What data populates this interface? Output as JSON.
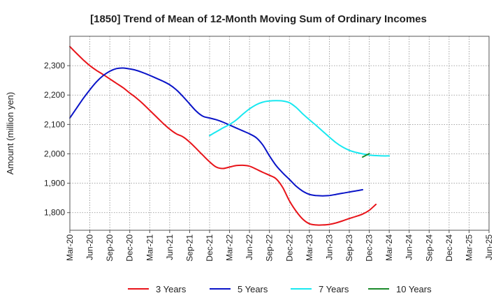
{
  "chart_data": {
    "type": "line",
    "title": "[1850]  Trend of Mean of 12-Month Moving Sum of Ordinary Incomes",
    "xlabel": "",
    "ylabel": "Amount (million yen)",
    "ylim": [
      1740,
      2400
    ],
    "y_ticks": [
      1800,
      1900,
      2000,
      2100,
      2200,
      2300
    ],
    "y_tick_labels": [
      "1,800",
      "1,900",
      "2,000",
      "2,100",
      "2,200",
      "2,300"
    ],
    "categories": [
      "Mar-20",
      "Jun-20",
      "Sep-20",
      "Dec-20",
      "Mar-21",
      "Jun-21",
      "Sep-21",
      "Dec-21",
      "Mar-22",
      "Jun-22",
      "Sep-22",
      "Dec-22",
      "Mar-23",
      "Jun-23",
      "Sep-23",
      "Dec-23",
      "Mar-24",
      "Jun-24",
      "Sep-24",
      "Dec-24",
      "Mar-25",
      "Jun-25"
    ],
    "grid": true,
    "legend_position": "bottom",
    "series": [
      {
        "name": "3 Years",
        "color": "#e8141a",
        "points": [
          [
            0,
            2365
          ],
          [
            1,
            2342
          ],
          [
            2,
            2320
          ],
          [
            3,
            2300
          ],
          [
            4,
            2284
          ],
          [
            5,
            2270
          ],
          [
            6,
            2255
          ],
          [
            7,
            2240
          ],
          [
            8,
            2225
          ],
          [
            9,
            2207
          ],
          [
            10,
            2190
          ],
          [
            11,
            2170
          ],
          [
            12,
            2148
          ],
          [
            13,
            2126
          ],
          [
            14,
            2104
          ],
          [
            15,
            2084
          ],
          [
            16,
            2068
          ],
          [
            17,
            2058
          ],
          [
            18,
            2040
          ],
          [
            19,
            2018
          ],
          [
            20,
            1995
          ],
          [
            21,
            1973
          ],
          [
            22,
            1955
          ],
          [
            23,
            1950
          ],
          [
            24,
            1955
          ],
          [
            25,
            1960
          ],
          [
            26,
            1961
          ],
          [
            27,
            1958
          ],
          [
            28,
            1948
          ],
          [
            29,
            1937
          ],
          [
            30,
            1927
          ],
          [
            31,
            1915
          ],
          [
            32,
            1885
          ],
          [
            33,
            1840
          ],
          [
            34,
            1805
          ],
          [
            35,
            1778
          ],
          [
            36,
            1762
          ],
          [
            37,
            1758
          ],
          [
            38,
            1758
          ],
          [
            39,
            1760
          ],
          [
            40,
            1765
          ],
          [
            41,
            1772
          ],
          [
            42,
            1780
          ],
          [
            43,
            1787
          ],
          [
            44,
            1795
          ],
          [
            45,
            1808
          ],
          [
            46,
            1828
          ]
        ]
      },
      {
        "name": "5 Years",
        "color": "#0a14c8",
        "points": [
          [
            0,
            2122
          ],
          [
            1,
            2155
          ],
          [
            2,
            2188
          ],
          [
            3,
            2218
          ],
          [
            4,
            2245
          ],
          [
            5,
            2266
          ],
          [
            6,
            2281
          ],
          [
            7,
            2290
          ],
          [
            8,
            2292
          ],
          [
            9,
            2289
          ],
          [
            10,
            2284
          ],
          [
            11,
            2276
          ],
          [
            12,
            2267
          ],
          [
            13,
            2257
          ],
          [
            14,
            2247
          ],
          [
            15,
            2235
          ],
          [
            16,
            2218
          ],
          [
            17,
            2195
          ],
          [
            18,
            2170
          ],
          [
            19,
            2145
          ],
          [
            20,
            2128
          ],
          [
            21,
            2122
          ],
          [
            22,
            2116
          ],
          [
            23,
            2108
          ],
          [
            24,
            2098
          ],
          [
            25,
            2088
          ],
          [
            26,
            2078
          ],
          [
            27,
            2068
          ],
          [
            28,
            2055
          ],
          [
            29,
            2030
          ],
          [
            30,
            1993
          ],
          [
            31,
            1960
          ],
          [
            32,
            1935
          ],
          [
            33,
            1913
          ],
          [
            34,
            1890
          ],
          [
            35,
            1873
          ],
          [
            36,
            1862
          ],
          [
            37,
            1858
          ],
          [
            38,
            1857
          ],
          [
            39,
            1858
          ],
          [
            40,
            1862
          ],
          [
            41,
            1866
          ],
          [
            42,
            1870
          ],
          [
            43,
            1874
          ],
          [
            44,
            1878
          ]
        ]
      },
      {
        "name": "7 Years",
        "color": "#18e8f0",
        "points": [
          [
            0,
            2062
          ],
          [
            1,
            2075
          ],
          [
            2,
            2088
          ],
          [
            3,
            2100
          ],
          [
            4,
            2115
          ],
          [
            5,
            2135
          ],
          [
            6,
            2153
          ],
          [
            7,
            2167
          ],
          [
            8,
            2176
          ],
          [
            9,
            2180
          ],
          [
            10,
            2181
          ],
          [
            11,
            2180
          ],
          [
            12,
            2174
          ],
          [
            13,
            2158
          ],
          [
            14,
            2136
          ],
          [
            15,
            2116
          ],
          [
            16,
            2097
          ],
          [
            17,
            2077
          ],
          [
            18,
            2057
          ],
          [
            19,
            2038
          ],
          [
            20,
            2023
          ],
          [
            21,
            2012
          ],
          [
            22,
            2005
          ],
          [
            23,
            2000
          ],
          [
            24,
            1996
          ],
          [
            25,
            1994
          ],
          [
            26,
            1993
          ],
          [
            27,
            1993
          ]
        ]
      },
      {
        "name": "10 Years",
        "color": "#1a8a2a",
        "points": [
          [
            0,
            1989
          ],
          [
            1,
            2001
          ]
        ]
      }
    ]
  }
}
